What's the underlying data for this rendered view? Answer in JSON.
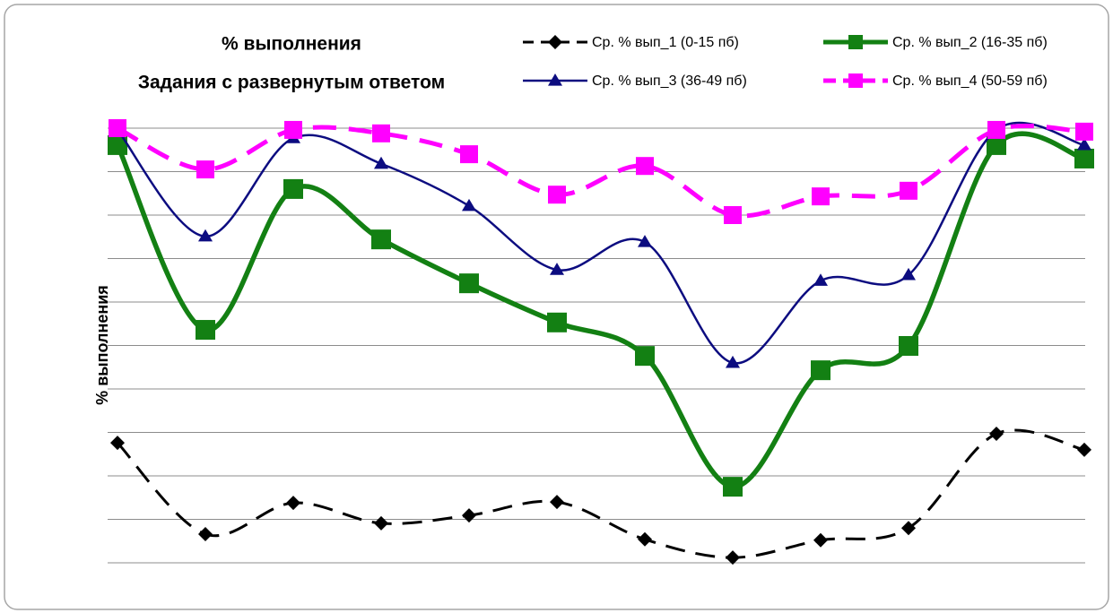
{
  "chart_data": {
    "type": "line",
    "title": "% выполнения",
    "subtitle": "Задания с развернутым ответом",
    "y_label": "% выполнения",
    "categories": [
      null,
      null,
      null,
      null,
      null,
      null,
      null,
      null,
      null,
      null,
      null,
      null
    ],
    "series": [
      {
        "name": "Ср. % вып_1 (0-15 пб)",
        "color": "#000000",
        "marker": "diamond",
        "dash": true,
        "values": [
          27.6,
          6.6,
          13.8,
          9.1,
          10.9,
          14.0,
          5.4,
          1.2,
          5.2,
          8.0,
          29.7,
          26.0
        ]
      },
      {
        "name": "Ср. % вып_2 (16-35 пб)",
        "color": "#138013",
        "marker": "square",
        "dash": false,
        "values": [
          96.1,
          53.6,
          86.0,
          74.4,
          64.3,
          55.3,
          47.6,
          17.5,
          44.3,
          49.9,
          96.1,
          93.0
        ]
      },
      {
        "name": "Ср. % вып_3 (36-49 пб)",
        "color": "#0c0c80",
        "marker": "triangle",
        "dash": false,
        "values": [
          99.6,
          75.1,
          97.7,
          91.8,
          82.1,
          67.4,
          73.8,
          46.0,
          64.9,
          66.2,
          99.6,
          96.1
        ]
      },
      {
        "name": "Ср. % вып_4 (50-59 пб)",
        "color": "#ff00ff",
        "marker": "square",
        "dash": true,
        "values": [
          100,
          90.5,
          99.6,
          98.8,
          94.0,
          84.7,
          91.3,
          80.0,
          84.3,
          85.6,
          99.6,
          99.2
        ]
      }
    ],
    "ylim": [
      0,
      100
    ],
    "yticks": [
      0,
      10,
      20,
      30,
      40,
      50,
      60,
      70,
      80,
      90,
      100
    ],
    "grid": true,
    "legend": "top-right"
  }
}
